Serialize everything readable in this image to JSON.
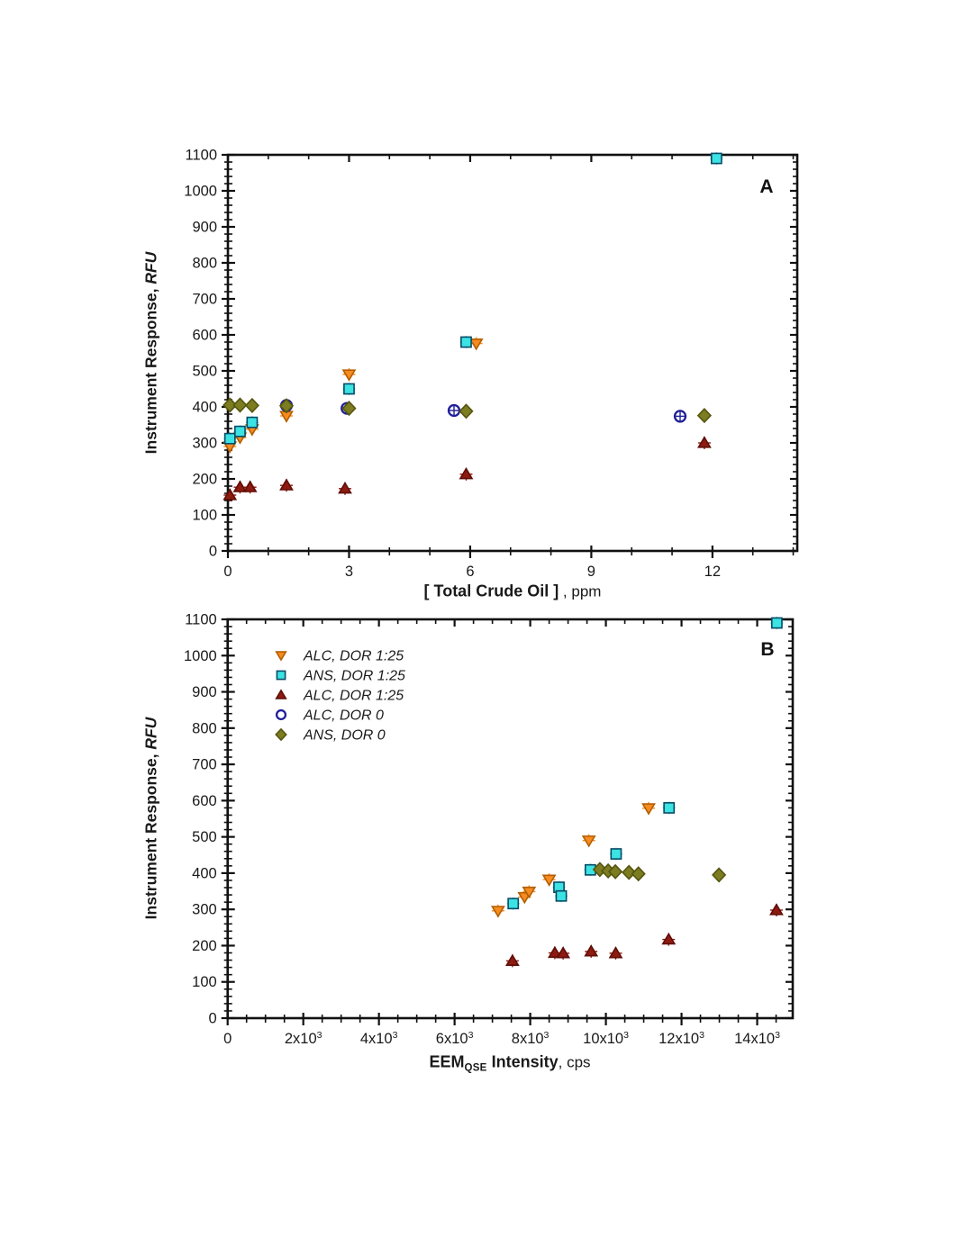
{
  "page": {
    "background": "#ffffff",
    "text_color": "#1a1a1a"
  },
  "panels": {
    "a": {
      "panel_label": "A",
      "y_title_main": "Instrument Response, ",
      "y_title_unit": "RFU",
      "x_title_bold": "[ Total Crude Oil ]",
      "x_title_normal": " , ppm"
    },
    "b": {
      "panel_label": "B",
      "y_title_main": "Instrument Response, ",
      "y_title_unit": "RFU",
      "x_title_bold_prefix": "EEM",
      "x_title_sub": "QSE",
      "x_title_bold_suffix": " Intensity",
      "x_title_normal": ", cps"
    }
  },
  "legend": {
    "location": "upper-left-panel-b",
    "items": [
      {
        "label": "ALC, DOR 1:25",
        "marker": "triangle-down",
        "color": "#F68B1F",
        "stroke": "#B35E00"
      },
      {
        "label": "ANS, DOR 1:25",
        "marker": "square",
        "color": "#3BE3E3",
        "stroke": "#0A4A66"
      },
      {
        "label": "ALC, DOR 1:25",
        "marker": "triangle-up",
        "color": "#8E1A10",
        "stroke": "#5E0E08"
      },
      {
        "label": "ALC, DOR 0",
        "marker": "circle-open",
        "color": "#1F1F99",
        "stroke": "#1F1F99"
      },
      {
        "label": "ANS, DOR 0",
        "marker": "diamond",
        "color": "#7C7C21",
        "stroke": "#55550F"
      }
    ]
  },
  "chart_data": [
    {
      "id": "A",
      "type": "scatter",
      "panel_label": "A",
      "xlabel": "[ Total Crude Oil ] , ppm",
      "ylabel": "Instrument Response, RFU",
      "xlim": [
        0,
        14.1
      ],
      "ylim": [
        0,
        1100
      ],
      "x_major_ticks": [
        0,
        3,
        6,
        9,
        12
      ],
      "x_tick_labels": [
        "0",
        "3",
        "6",
        "9",
        "12"
      ],
      "x_minor_step": 1,
      "y_major_step": 100,
      "y_minor_step": 20,
      "y_tick_labels": [
        "0",
        "100",
        "200",
        "300",
        "400",
        "500",
        "600",
        "700",
        "800",
        "900",
        "1000",
        "1100"
      ],
      "grid": false,
      "series": [
        {
          "name": "ALC, DOR 1:25",
          "marker": "triangle-down",
          "color": "#F68B1F",
          "stroke": "#B35E00",
          "points": [
            [
              0.05,
              290
            ],
            [
              0.3,
              315
            ],
            [
              0.6,
              338
            ],
            [
              1.45,
              375
            ],
            [
              3.0,
              490
            ],
            [
              6.15,
              576
            ]
          ]
        },
        {
          "name": "ANS, DOR 1:25",
          "marker": "square",
          "color": "#3BE3E3",
          "stroke": "#0A4A66",
          "points": [
            [
              0.05,
              312
            ],
            [
              0.3,
              332
            ],
            [
              0.6,
              357
            ],
            [
              3.0,
              450
            ],
            [
              5.9,
              580
            ],
            [
              12.1,
              1090
            ]
          ]
        },
        {
          "name": "ALC, DOR 1:25",
          "marker": "triangle-up",
          "color": "#8E1A10",
          "stroke": "#5E0E08",
          "points": [
            [
              0.05,
              155
            ],
            [
              0.3,
              177
            ],
            [
              0.55,
              177
            ],
            [
              1.45,
              182
            ],
            [
              2.9,
              173
            ],
            [
              5.9,
              213
            ],
            [
              11.8,
              300
            ]
          ]
        },
        {
          "name": "ALC, DOR 0",
          "marker": "circle-open",
          "color": "#1F1F99",
          "stroke": "#1F1F99",
          "points": [
            [
              1.45,
              404
            ],
            [
              2.95,
              396
            ],
            [
              5.6,
              390
            ],
            [
              11.2,
              374
            ]
          ]
        },
        {
          "name": "ANS, DOR 0",
          "marker": "diamond",
          "color": "#7C7C21",
          "stroke": "#55550F",
          "points": [
            [
              0.05,
              405
            ],
            [
              0.3,
              405
            ],
            [
              0.6,
              404
            ],
            [
              1.45,
              403
            ],
            [
              3.0,
              396
            ],
            [
              5.9,
              388
            ],
            [
              11.8,
              376
            ]
          ]
        }
      ]
    },
    {
      "id": "B",
      "type": "scatter",
      "panel_label": "B",
      "xlabel": "EEM_QSE Intensity, cps",
      "ylabel": "Instrument Response, RFU",
      "xlim": [
        0,
        14940
      ],
      "ylim": [
        0,
        1100
      ],
      "x_major_ticks": [
        0,
        2000,
        4000,
        6000,
        8000,
        10000,
        12000,
        14000
      ],
      "x_tick_labels": [
        "0",
        "2x10^3",
        "4x10^3",
        "6x10^3",
        "8x10^3",
        "10x10^3",
        "12x10^3",
        "14x10^3"
      ],
      "x_minor_step": 500,
      "y_major_step": 100,
      "y_minor_step": 20,
      "y_tick_labels": [
        "0",
        "100",
        "200",
        "300",
        "400",
        "500",
        "600",
        "700",
        "800",
        "900",
        "1000",
        "1100"
      ],
      "grid": false,
      "legend_visible": true,
      "series": [
        {
          "name": "ALC, DOR 1:25",
          "marker": "triangle-down",
          "color": "#F68B1F",
          "stroke": "#B35E00",
          "points": [
            [
              7150,
              296
            ],
            [
              7850,
              334
            ],
            [
              7970,
              349
            ],
            [
              8500,
              382
            ],
            [
              9550,
              490
            ],
            [
              11130,
              579
            ]
          ]
        },
        {
          "name": "ANS, DOR 1:25",
          "marker": "square",
          "color": "#3BE3E3",
          "stroke": "#0A4A66",
          "points": [
            [
              7550,
              316
            ],
            [
              8760,
              361
            ],
            [
              8820,
              337
            ],
            [
              9590,
              409
            ],
            [
              10270,
              453
            ],
            [
              11670,
              580
            ],
            [
              14520,
              1090
            ]
          ]
        },
        {
          "name": "ALC, DOR 1:25",
          "marker": "triangle-up",
          "color": "#8E1A10",
          "stroke": "#5E0E08",
          "points": [
            [
              7530,
              158
            ],
            [
              8650,
              180
            ],
            [
              8870,
              179
            ],
            [
              9610,
              184
            ],
            [
              10260,
              179
            ],
            [
              11660,
              217
            ],
            [
              14510,
              298
            ]
          ]
        },
        {
          "name": "ALC, DOR 0",
          "marker": "circle-open",
          "color": "#1F1F99",
          "stroke": "#1F1F99",
          "points": []
        },
        {
          "name": "ANS, DOR 0",
          "marker": "diamond",
          "color": "#7C7C21",
          "stroke": "#55550F",
          "points": [
            [
              9840,
              410
            ],
            [
              10060,
              406
            ],
            [
              10250,
              404
            ],
            [
              10610,
              402
            ],
            [
              10860,
              398
            ],
            [
              12990,
              395
            ]
          ]
        }
      ]
    }
  ]
}
